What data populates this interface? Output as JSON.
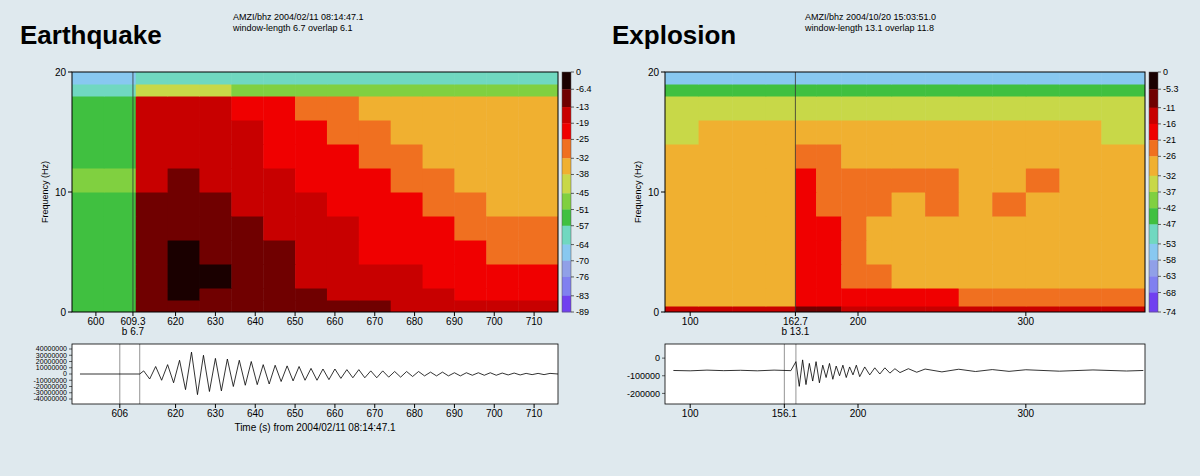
{
  "chart_data": [
    {
      "type": "heatmap",
      "title": "Earthquake",
      "subtitle": [
        "AMZI/bhz 2004/02/11 08:14:47.1",
        "window-length 6.7 overlap 6.1"
      ],
      "y_label": "Frequency (Hz)",
      "xlim": [
        594,
        716
      ],
      "ylim": [
        0,
        20
      ],
      "xticks": [
        600,
        609.3,
        620,
        630,
        640,
        650,
        660,
        670,
        680,
        690,
        700,
        710
      ],
      "yticks": [
        0,
        10,
        20
      ],
      "annotations": [
        {
          "x": 609.3,
          "text": "b 6.7"
        }
      ],
      "x_edges": [
        594,
        602,
        610,
        618,
        626,
        634,
        642,
        650,
        658,
        666,
        674,
        682,
        690,
        698,
        706,
        716
      ],
      "y_edges": [
        0,
        1,
        2,
        4,
        6,
        8,
        10,
        12,
        14,
        16,
        18,
        19,
        20
      ],
      "cells": [
        [
          -53,
          -52,
          -12,
          -8,
          -7,
          -8,
          -9,
          -10,
          -11,
          -12,
          -13,
          -14,
          -15,
          -16,
          -17
        ],
        [
          -55,
          -54,
          -10,
          -6,
          -7,
          -9,
          -10,
          -12,
          -13,
          -14,
          -16,
          -17,
          -19,
          -20,
          -21
        ],
        [
          -54,
          -53,
          -9,
          -5,
          -6,
          -9,
          -11,
          -13,
          -15,
          -16,
          -18,
          -19,
          -21,
          -22,
          -24
        ],
        [
          -53,
          -52,
          -10,
          -5,
          -7,
          -10,
          -12,
          -15,
          -17,
          -19,
          -20,
          -22,
          -24,
          -26,
          -28
        ],
        [
          -52,
          -52,
          -11,
          -7,
          -9,
          -12,
          -14,
          -16,
          -18,
          -20,
          -22,
          -24,
          -27,
          -29,
          -31
        ],
        [
          -51,
          -51,
          -12,
          -9,
          -11,
          -14,
          -16,
          -18,
          -20,
          -22,
          -24,
          -27,
          -30,
          -33,
          -34
        ],
        [
          -47,
          -48,
          -13,
          -11,
          -13,
          -15,
          -17,
          -19,
          -21,
          -23,
          -27,
          -31,
          -33,
          -34,
          -35
        ],
        [
          -52,
          -52,
          -14,
          -13,
          -15,
          -17,
          -19,
          -21,
          -23,
          -27,
          -31,
          -33,
          -34,
          -35,
          -35
        ],
        [
          -53,
          -53,
          -15,
          -14,
          -16,
          -18,
          -20,
          -22,
          -27,
          -31,
          -33,
          -34,
          -35,
          -35,
          -36
        ],
        [
          -54,
          -54,
          -17,
          -16,
          -18,
          -20,
          -23,
          -28,
          -31,
          -33,
          -34,
          -35,
          -35,
          -36,
          -36
        ],
        [
          -58,
          -58,
          -44,
          -43,
          -44,
          -45,
          -46,
          -46,
          -47,
          -47,
          -48,
          -48,
          -49,
          -49,
          -50
        ],
        [
          -68,
          -68,
          -58,
          -58,
          -59,
          -59,
          -60,
          -60,
          -60,
          -61,
          -61,
          -61,
          -62,
          -62,
          -62
        ]
      ],
      "colorbar": {
        "range": [
          -89,
          0
        ],
        "ticks": [
          0,
          -6.4,
          -13,
          -19,
          -25,
          -32,
          -38,
          -45,
          -51,
          -57,
          -64,
          -70,
          -76,
          -83,
          -89
        ],
        "colors": [
          "#1a0000",
          "#700000",
          "#c80000",
          "#f00000",
          "#f07020",
          "#f0b030",
          "#c8d848",
          "#80d040",
          "#40c040",
          "#70d8c0",
          "#88c8f0",
          "#90a0e8",
          "#8080f0",
          "#7040f0"
        ]
      }
    },
    {
      "type": "line",
      "x_label": "Time (s) from 2004/02/11 08:14:47.1",
      "color": "#000000",
      "xlim": [
        594,
        716
      ],
      "ylim": [
        -48000000,
        48000000
      ],
      "xticks": [
        606,
        620,
        630,
        640,
        650,
        660,
        670,
        680,
        690,
        700,
        710
      ],
      "yticks": [
        -40000000,
        -30000000,
        -20000000,
        -10000000,
        0,
        10000000,
        20000000,
        30000000,
        40000000
      ],
      "markers": [
        606,
        611
      ],
      "x": [
        596,
        611,
        612,
        613.5,
        615,
        616.5,
        618,
        619.5,
        621,
        622.5,
        624,
        625.5,
        627,
        628.5,
        630,
        631.5,
        633,
        634.5,
        636,
        637.5,
        639,
        640.5,
        642,
        643.5,
        645,
        646.5,
        648,
        649.5,
        651,
        652.5,
        654,
        655.5,
        657,
        658.5,
        660,
        661.5,
        663,
        664.5,
        666,
        667.5,
        669,
        670.5,
        672,
        673.5,
        675,
        676.5,
        678,
        679.5,
        681,
        682.5,
        684,
        685.5,
        687,
        688.5,
        690,
        691.5,
        693,
        694.5,
        696,
        697.5,
        699,
        700.5,
        702,
        703.5,
        705,
        706.5,
        708,
        709.5,
        711,
        712.5,
        714,
        716
      ],
      "values": [
        0,
        0,
        5000000,
        -8000000,
        12000000,
        -10000000,
        15000000,
        -14000000,
        22000000,
        -25000000,
        35000000,
        -33000000,
        30000000,
        -28000000,
        25000000,
        -27000000,
        24000000,
        -20000000,
        22000000,
        -18000000,
        20000000,
        -17000000,
        15000000,
        -16000000,
        14000000,
        -12000000,
        13000000,
        -11000000,
        12000000,
        -10000000,
        9000000,
        -10000000,
        8000000,
        -9000000,
        8000000,
        -7000000,
        7000000,
        -6000000,
        7000000,
        -6000000,
        5000000,
        -6000000,
        5000000,
        -5000000,
        4000000,
        -5000000,
        4000000,
        -4000000,
        4000000,
        -3000000,
        3000000,
        -3000000,
        3000000,
        -3000000,
        2000000,
        -3000000,
        2000000,
        -2000000,
        2000000,
        -2000000,
        2000000,
        -2000000,
        1500000,
        -1500000,
        1500000,
        -1500000,
        1000000,
        -1000000,
        1000000,
        -1000000,
        1000000,
        0
      ]
    },
    {
      "type": "heatmap",
      "title": "Explosion",
      "subtitle": [
        "AMZI/bhz 2004/10/20 15:03:51.0",
        "window-length 13.1 overlap 11.8"
      ],
      "y_label": "Frequency (Hz)",
      "xlim": [
        85,
        371
      ],
      "ylim": [
        0,
        20
      ],
      "xticks": [
        100,
        162.7,
        200,
        300
      ],
      "yticks": [
        0,
        10,
        20
      ],
      "annotations": [
        {
          "x": 162.7,
          "text": "b 13.1"
        }
      ],
      "x_edges": [
        85,
        105,
        125,
        145,
        162.7,
        175,
        190,
        205,
        220,
        240,
        260,
        280,
        300,
        320,
        345,
        371
      ],
      "y_edges": [
        0,
        0.5,
        2,
        4,
        6,
        8,
        10,
        12,
        14,
        16,
        18,
        19,
        20
      ],
      "cells": [
        [
          -14,
          -14,
          -14,
          -14,
          -10,
          -10,
          -11,
          -12,
          -12,
          -13,
          -13,
          -13,
          -14,
          -14,
          -14
        ],
        [
          -28,
          -28,
          -27,
          -27,
          -16,
          -17,
          -18,
          -19,
          -20,
          -20,
          -21,
          -21,
          -22,
          -22,
          -23
        ],
        [
          -30,
          -30,
          -29,
          -29,
          -17,
          -19,
          -22,
          -25,
          -27,
          -28,
          -28,
          -29,
          -29,
          -30,
          -30
        ],
        [
          -31,
          -30,
          -30,
          -30,
          -16,
          -18,
          -22,
          -26,
          -28,
          -29,
          -29,
          -30,
          -30,
          -31,
          -31
        ],
        [
          -31,
          -31,
          -30,
          -30,
          -17,
          -20,
          -24,
          -27,
          -28,
          -29,
          -30,
          -30,
          -31,
          -31,
          -31
        ],
        [
          -30,
          -28,
          -30,
          -29,
          -18,
          -21,
          -23,
          -24,
          -27,
          -25,
          -26,
          -24,
          -28,
          -29,
          -30
        ],
        [
          -29,
          -30,
          -30,
          -29,
          -20,
          -22,
          -24,
          -23,
          -25,
          -24,
          -26,
          -27,
          -25,
          -28,
          -29
        ],
        [
          -31,
          -31,
          -30,
          -30,
          -24,
          -22,
          -26,
          -27,
          -28,
          -27,
          -28,
          -29,
          -30,
          -26,
          -30
        ],
        [
          -32,
          -31,
          -31,
          -31,
          -29,
          -28,
          -30,
          -30,
          -31,
          -31,
          -31,
          -30,
          -31,
          -31,
          -32
        ],
        [
          -33,
          -33,
          -33,
          -33,
          -32,
          -32,
          -33,
          -33,
          -33,
          -33,
          -33,
          -33,
          -33,
          -33,
          -33
        ],
        [
          -44,
          -44,
          -43,
          -43,
          -42,
          -42,
          -43,
          -43,
          -43,
          -43,
          -43,
          -43,
          -44,
          -44,
          -44
        ],
        [
          -57,
          -57,
          -57,
          -57,
          -56,
          -56,
          -56,
          -57,
          -57,
          -57,
          -57,
          -57,
          -57,
          -57,
          -57
        ]
      ],
      "colorbar": {
        "range": [
          -74,
          0
        ],
        "ticks": [
          0,
          -5.3,
          -11,
          -16,
          -21,
          -26,
          -32,
          -37,
          -42,
          -47,
          -53,
          -58,
          -63,
          -68,
          -74
        ],
        "colors": [
          "#1a0000",
          "#700000",
          "#c80000",
          "#f00000",
          "#f07020",
          "#f0b030",
          "#c8d848",
          "#80d040",
          "#40c040",
          "#70d8c0",
          "#88c8f0",
          "#90a0e8",
          "#8080f0",
          "#7040f0"
        ]
      }
    },
    {
      "type": "line",
      "color": "#000000",
      "xlim": [
        85,
        371
      ],
      "ylim": [
        -260000,
        80000
      ],
      "xticks": [
        100,
        156.1,
        200,
        300
      ],
      "yticks": [
        -200000,
        -100000,
        0
      ],
      "markers": [
        156.1,
        163
      ],
      "x": [
        90,
        100,
        110,
        120,
        130,
        140,
        150,
        160,
        163,
        165,
        167,
        169,
        171,
        173,
        175,
        177,
        179,
        181,
        183,
        185,
        187,
        189,
        191,
        193,
        195,
        197,
        199,
        201,
        204,
        207,
        210,
        213,
        216,
        219,
        222,
        225,
        230,
        235,
        240,
        250,
        260,
        270,
        280,
        290,
        300,
        320,
        340,
        360,
        370
      ],
      "values": [
        -70000,
        -72000,
        -68000,
        -71000,
        -69000,
        -72000,
        -68000,
        -71000,
        -20000,
        -160000,
        -10000,
        -150000,
        -30000,
        -130000,
        -20000,
        -140000,
        -40000,
        -110000,
        -30000,
        -120000,
        -45000,
        -100000,
        -40000,
        -110000,
        -50000,
        -95000,
        -40000,
        -105000,
        -50000,
        -95000,
        -55000,
        -90000,
        -55000,
        -85000,
        -60000,
        -82000,
        -60000,
        -80000,
        -62000,
        -78000,
        -63000,
        -76000,
        -65000,
        -75000,
        -66000,
        -74000,
        -67000,
        -73000,
        -70000
      ]
    }
  ]
}
